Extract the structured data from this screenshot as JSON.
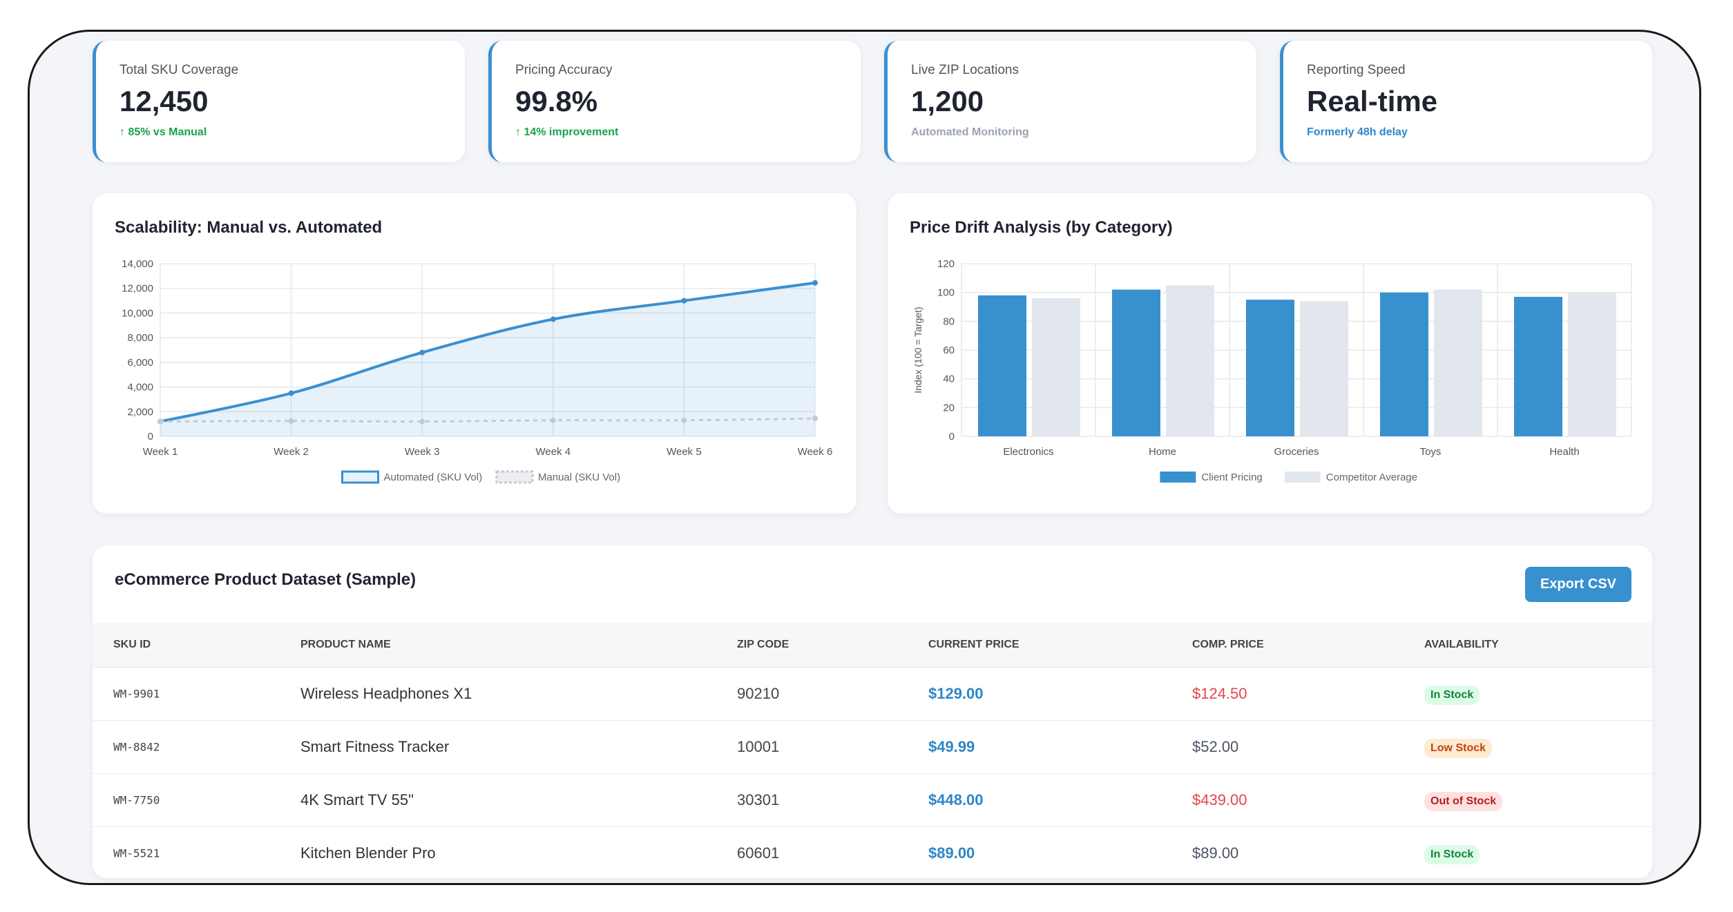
{
  "kpis": [
    {
      "label": "Total SKU Coverage",
      "value": "12,450",
      "note": "↑ 85% vs Manual",
      "note_color": "#16a34a"
    },
    {
      "label": "Pricing Accuracy",
      "value": "99.8%",
      "note": "↑ 14% improvement",
      "note_color": "#16a34a"
    },
    {
      "label": "Live ZIP Locations",
      "value": "1,200",
      "note": "Automated Monitoring",
      "note_color": "#9aa3ad"
    },
    {
      "label": "Reporting Speed",
      "value": "Real-time",
      "note": "Formerly 48h delay",
      "note_color": "#2f86c8"
    }
  ],
  "chart_data": [
    {
      "type": "line",
      "title": "Scalability: Manual vs. Automated",
      "categories": [
        "Week 1",
        "Week 2",
        "Week 3",
        "Week 4",
        "Week 5",
        "Week 6"
      ],
      "series": [
        {
          "name": "Automated (SKU Vol)",
          "color": "#3b8fd0",
          "fill": true,
          "dashed": false,
          "values": [
            1200,
            3500,
            6800,
            9500,
            11000,
            12450
          ]
        },
        {
          "name": "Manual (SKU Vol)",
          "color": "#c3c9d0",
          "fill": false,
          "dashed": true,
          "values": [
            1200,
            1250,
            1200,
            1300,
            1300,
            1450
          ]
        }
      ],
      "ylim": [
        0,
        14000
      ],
      "yticks": [
        0,
        {
          "value": 2000,
          "label": "2,000"
        },
        {
          "value": 4000,
          "label": "4,000"
        },
        {
          "value": 6000,
          "label": "6,000"
        },
        {
          "value": 8000,
          "label": "8,000"
        },
        {
          "value": 10000,
          "label": "10,000"
        },
        {
          "value": 12000,
          "label": "12,000"
        },
        {
          "value": 14000,
          "label": "14,000"
        }
      ],
      "grid": true,
      "legend": "bottom"
    },
    {
      "type": "bar",
      "title": "Price Drift Analysis (by Category)",
      "y_label": "Index (100 = Target)",
      "categories": [
        "Electronics",
        "Home",
        "Groceries",
        "Toys",
        "Health"
      ],
      "series": [
        {
          "name": "Client Pricing",
          "color": "#3890cf",
          "values": [
            98,
            102,
            95,
            100,
            97
          ]
        },
        {
          "name": "Competitor Average",
          "color": "#e2e7ee",
          "values": [
            96,
            105,
            94,
            102,
            100
          ]
        }
      ],
      "ylim": [
        0,
        120
      ],
      "yticks": [
        0,
        20,
        40,
        60,
        80,
        100,
        120
      ],
      "grid": true,
      "legend": "bottom"
    }
  ],
  "table": {
    "title": "eCommerce Product Dataset (Sample)",
    "button": "Export CSV",
    "headers": [
      "SKU ID",
      "PRODUCT NAME",
      "ZIP CODE",
      "CURRENT PRICE",
      "COMP. PRICE",
      "AVAILABILITY"
    ],
    "rows": [
      {
        "sku": "WM-9901",
        "name": "Wireless Headphones X1",
        "zip": "90210",
        "price": "$129.00",
        "comp": "$124.50",
        "comp_color": "#e0474c",
        "availability": "In Stock",
        "badge_color": "#15803d",
        "badge_bg": "#dcfce7"
      },
      {
        "sku": "WM-8842",
        "name": "Smart Fitness Tracker",
        "zip": "10001",
        "price": "$49.99",
        "comp": "$52.00",
        "comp_color": "#4b5563",
        "availability": "Low Stock",
        "badge_color": "#c2410c",
        "badge_bg": "#fdecd2"
      },
      {
        "sku": "WM-7750",
        "name": "4K Smart TV 55\"",
        "zip": "30301",
        "price": "$448.00",
        "comp": "$439.00",
        "comp_color": "#e0474c",
        "availability": "Out of Stock",
        "badge_color": "#b91c1c",
        "badge_bg": "#fee2e2"
      },
      {
        "sku": "WM-5521",
        "name": "Kitchen Blender Pro",
        "zip": "60601",
        "price": "$89.00",
        "comp": "$89.00",
        "comp_color": "#4b5563",
        "availability": "In Stock",
        "badge_color": "#15803d",
        "badge_bg": "#dcfce7"
      }
    ]
  }
}
